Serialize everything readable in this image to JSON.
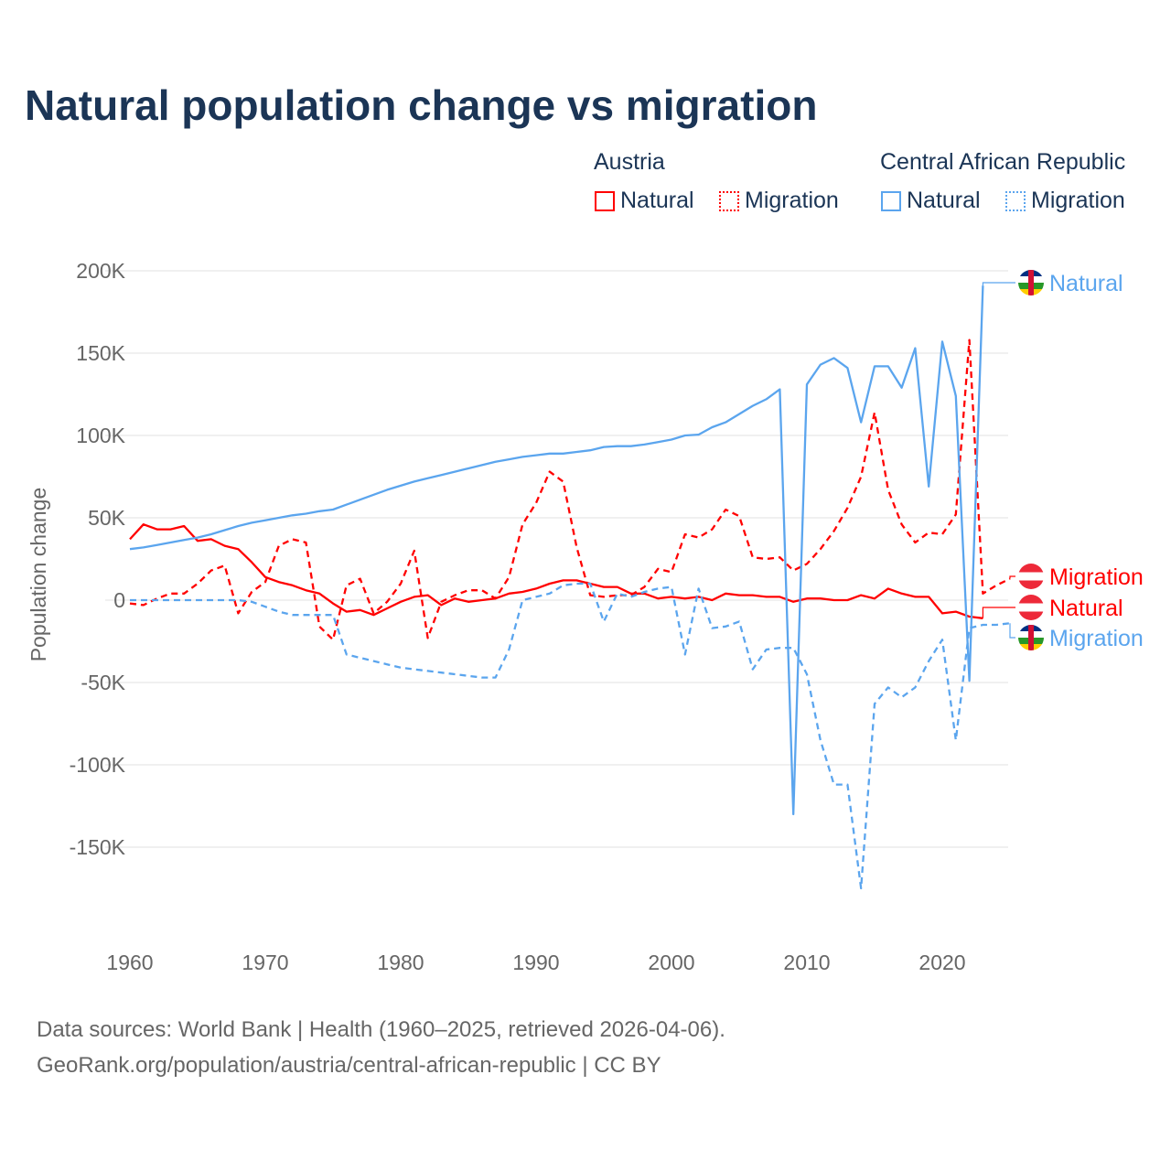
{
  "title": "Natural population change vs migration",
  "legend": {
    "groups": [
      {
        "name": "Austria",
        "items": [
          "Natural",
          "Migration"
        ],
        "color": "#ff0000"
      },
      {
        "name": "Central African Republic",
        "items": [
          "Natural",
          "Migration"
        ],
        "color": "#5ba5ee"
      }
    ]
  },
  "footer": {
    "line1": "Data sources: World Bank | Health (1960–2025, retrieved 2026-04-06).",
    "line2": "GeoRank.org/population/austria/central-african-republic | CC BY"
  },
  "chart_data": {
    "type": "line",
    "title": "Natural population change vs migration",
    "xlabel": "",
    "ylabel": "Population change",
    "xlim": [
      1960,
      2025
    ],
    "ylim": [
      -200000,
      200000
    ],
    "x_ticks": [
      "1960",
      "1970",
      "1980",
      "1990",
      "2000",
      "2010",
      "2020"
    ],
    "y_ticks": [
      {
        "value": 200000,
        "label": "200K"
      },
      {
        "value": 150000,
        "label": "150K"
      },
      {
        "value": 100000,
        "label": "100K"
      },
      {
        "value": 50000,
        "label": "50K"
      },
      {
        "value": 0,
        "label": "0"
      },
      {
        "value": -50000,
        "label": "-50K"
      },
      {
        "value": -100000,
        "label": "-100K"
      },
      {
        "value": -150000,
        "label": "-150K"
      }
    ],
    "grid": true,
    "legend_position": "top-right",
    "x_start": 1960,
    "series": [
      {
        "name": "Natural",
        "country": "Austria",
        "color": "#ff0000",
        "dash": false,
        "end_label": "Natural",
        "values_k": [
          37,
          46,
          43,
          43,
          45,
          36,
          37,
          33,
          31,
          23,
          14,
          11,
          9,
          6,
          4,
          -2,
          -7,
          -6,
          -9,
          -5,
          -1,
          2,
          3,
          -3,
          1,
          -1,
          0,
          1,
          4,
          5,
          7,
          10,
          12,
          12,
          10,
          8,
          8,
          4,
          4,
          1,
          2,
          1,
          2,
          0,
          4,
          3,
          3,
          2,
          2,
          -1,
          1,
          1,
          0,
          0,
          3,
          1,
          7,
          4,
          2,
          2,
          -8,
          -7,
          -10,
          -11
        ]
      },
      {
        "name": "Migration",
        "country": "Austria",
        "color": "#ff0000",
        "dash": true,
        "end_label": "Migration",
        "values_k": [
          -2,
          -3,
          1,
          4,
          4,
          10,
          18,
          21,
          -8,
          5,
          11,
          33,
          37,
          35,
          -16,
          -24,
          9,
          13,
          -8,
          -1,
          10,
          30,
          -23,
          -1,
          3,
          6,
          6,
          1,
          14,
          46,
          59,
          78,
          72,
          32,
          3,
          2,
          3,
          3,
          8,
          19,
          17,
          40,
          38,
          43,
          55,
          51,
          26,
          25,
          26,
          18,
          22,
          31,
          42,
          56,
          75,
          114,
          67,
          46,
          35,
          41,
          40,
          52,
          158,
          4,
          9,
          13
        ]
      },
      {
        "name": "Natural",
        "country": "Central African Republic",
        "color": "#5ba5ee",
        "dash": false,
        "end_label": "Natural",
        "values_k": [
          31,
          32,
          33.5,
          35,
          36.5,
          38,
          40,
          42.5,
          45,
          47,
          48.5,
          50,
          51.5,
          52.5,
          54,
          55,
          58,
          61,
          64,
          67,
          69.5,
          72,
          74,
          76,
          78,
          80,
          82,
          84,
          85.5,
          87,
          88,
          89,
          89,
          90,
          91,
          93,
          93.5,
          93.5,
          94.5,
          96,
          97.5,
          100,
          100.5,
          105,
          108,
          113,
          118,
          122,
          128,
          -130,
          131,
          143,
          147,
          141,
          108,
          142,
          142,
          129,
          153,
          69,
          157,
          124,
          -49,
          191
        ]
      },
      {
        "name": "Migration",
        "country": "Central African Republic",
        "color": "#5ba5ee",
        "dash": true,
        "end_label": "Migration",
        "values_k": [
          0,
          0,
          0,
          0,
          0,
          0,
          0,
          0,
          0,
          -1,
          -4,
          -7,
          -9,
          -9,
          -9,
          -9,
          -33,
          -35,
          -37,
          -39,
          -41,
          -42,
          -43,
          -44,
          -45,
          -46,
          -47,
          -47,
          -30,
          0,
          2,
          4,
          9,
          10,
          10,
          -13,
          4,
          2,
          5,
          7,
          8,
          -33,
          7,
          -17,
          -16,
          -13,
          -42,
          -30,
          -29,
          -29,
          -45,
          -85,
          -112,
          -112,
          -175,
          -63,
          -53,
          -59,
          -53,
          -37,
          -24,
          -85,
          -17,
          -15,
          -15,
          -14
        ]
      }
    ]
  }
}
